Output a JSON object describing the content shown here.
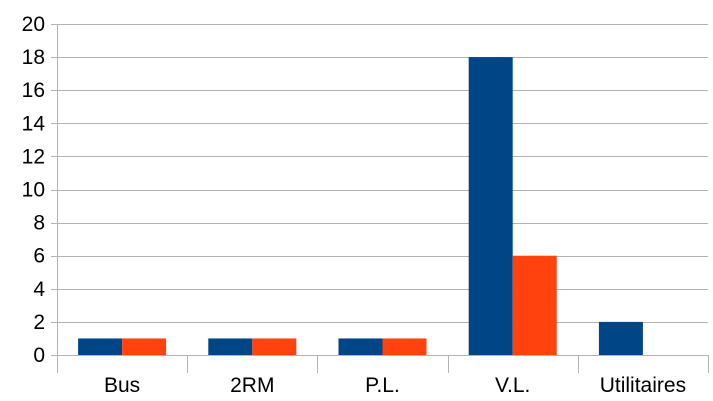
{
  "chart_data": {
    "type": "bar",
    "title": "",
    "xlabel": "",
    "ylabel": "",
    "categories": [
      "Bus",
      "2RM",
      "P.L.",
      "V.L.",
      "Utilitaires"
    ],
    "series": [
      {
        "values": [
          1,
          1,
          1,
          18,
          2
        ],
        "color": "#004586"
      },
      {
        "values": [
          1,
          1,
          1,
          6,
          0
        ],
        "color": "#ff420e"
      }
    ],
    "ylim": [
      0,
      20
    ],
    "yticks": [
      0,
      2,
      4,
      6,
      8,
      10,
      12,
      14,
      16,
      18,
      20
    ],
    "grid": true,
    "legend": "none"
  }
}
